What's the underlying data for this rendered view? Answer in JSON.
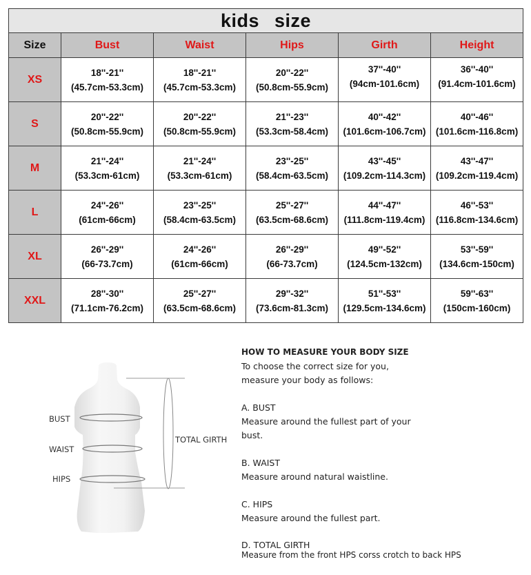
{
  "table": {
    "title": "kids   size",
    "headers": [
      "Size",
      "Bust",
      "Waist",
      "Hips",
      "Girth",
      "Height"
    ],
    "rows": [
      {
        "size": "XS",
        "cells": [
          [
            "18''-21''",
            "(45.7cm-53.3cm)"
          ],
          [
            "18''-21''",
            "(45.7cm-53.3cm)"
          ],
          [
            "20''-22''",
            "(50.8cm-55.9cm)"
          ],
          [
            "37''-40''",
            "(94cm-101.6cm)"
          ],
          [
            "36''-40''",
            "(91.4cm-101.6cm)"
          ]
        ]
      },
      {
        "size": "S",
        "cells": [
          [
            "20''-22''",
            "(50.8cm-55.9cm)"
          ],
          [
            "20''-22''",
            "(50.8cm-55.9cm)"
          ],
          [
            "21''-23''",
            "(53.3cm-58.4cm)"
          ],
          [
            "40''-42''",
            "(101.6cm-106.7cm)"
          ],
          [
            "40''-46''",
            "(101.6cm-116.8cm)"
          ]
        ]
      },
      {
        "size": "M",
        "cells": [
          [
            "21''-24''",
            "(53.3cm-61cm)"
          ],
          [
            "21''-24''",
            "(53.3cm-61cm)"
          ],
          [
            "23''-25''",
            "(58.4cm-63.5cm)"
          ],
          [
            "43''-45''",
            "(109.2cm-114.3cm)"
          ],
          [
            "43''-47''",
            "(109.2cm-119.4cm)"
          ]
        ]
      },
      {
        "size": "L",
        "cells": [
          [
            "24''-26''",
            "(61cm-66cm)"
          ],
          [
            "23''-25''",
            "(58.4cm-63.5cm)"
          ],
          [
            "25''-27''",
            "(63.5cm-68.6cm)"
          ],
          [
            "44''-47''",
            "(111.8cm-119.4cm)"
          ],
          [
            "46''-53''",
            "(116.8cm-134.6cm)"
          ]
        ]
      },
      {
        "size": "XL",
        "cells": [
          [
            "26''-29''",
            "(66-73.7cm)"
          ],
          [
            "24''-26''",
            "(61cm-66cm)"
          ],
          [
            "26''-29''",
            "(66-73.7cm)"
          ],
          [
            "49''-52''",
            "(124.5cm-132cm)"
          ],
          [
            "53''-59''",
            "(134.6cm-150cm)"
          ]
        ]
      },
      {
        "size": "XXL",
        "cells": [
          [
            "28''-30''",
            "(71.1cm-76.2cm)"
          ],
          [
            "25''-27''",
            "(63.5cm-68.6cm)"
          ],
          [
            "29''-32''",
            "(73.6cm-81.3cm)"
          ],
          [
            "51''-53''",
            "(129.5cm-134.6cm)"
          ],
          [
            "59''-63''",
            "(150cm-160cm)"
          ]
        ]
      }
    ]
  },
  "figure": {
    "labels": {
      "bust": "BUST",
      "waist": "WAIST",
      "hips": "HIPS",
      "girth": "TOTAL GIRTH"
    }
  },
  "guide": {
    "heading": "HOW TO MEASURE YOUR BODY SIZE",
    "intro": [
      "To choose the correct size for you,",
      "measure your body as follows:"
    ],
    "sections": [
      {
        "title": "A. BUST",
        "lines": [
          "Measure around the fullest part of your",
          "bust."
        ]
      },
      {
        "title": "B. WAIST",
        "lines": [
          "Measure around natural waistline."
        ]
      },
      {
        "title": "C. HIPS",
        "lines": [
          "Measure around the fullest part."
        ]
      },
      {
        "title": "D. TOTAL GIRTH",
        "lines": [
          "Measure from the front HPS corss crotch to back HPS"
        ]
      }
    ]
  },
  "colors": {
    "accent_red": "#e01818",
    "header_gray": "#c4c4c4",
    "title_gray": "#e6e6e6"
  }
}
